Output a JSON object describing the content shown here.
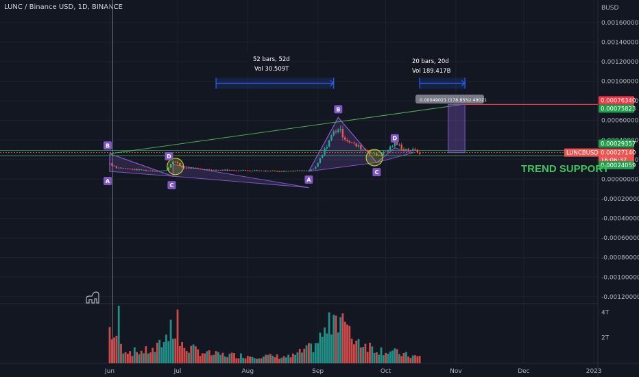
{
  "header": {
    "symbol_title": "LUNC / Binance USD, 1D, BINANCE",
    "currency": "BUSD"
  },
  "annotations": {
    "range1_bars": "52 bars, 52d",
    "range1_vol": "Vol 30.509T",
    "range2_bars": "20 bars, 20d",
    "range2_vol": "Vol 189.417B",
    "price_range_note": "0.00049021 (178.85%) 49021",
    "trend_support": "TREND SUPPORT",
    "pattern1_points": [
      "A",
      "B",
      "C",
      "D"
    ],
    "pattern2_points": [
      "A",
      "B",
      "C",
      "D"
    ]
  },
  "price_tags": {
    "target_upper": "0.00076340",
    "target_lower": "0.00075823",
    "level_upper": "0.00029357",
    "symbol": "LUNCBUSD",
    "last_price": "0.00027140",
    "countdown": "16:06:37",
    "level_lower": "0.00024059"
  },
  "colors": {
    "background": "#131722",
    "up": "#26a69a",
    "down": "#ef5350",
    "pattern": "#7e57c2",
    "trendline": "#4caf50",
    "range_box": "#2962ff",
    "target_line": "#f23645"
  },
  "icons": [
    "tradingview-logo-icon"
  ],
  "chart_data": {
    "type": "candlestick",
    "title": "LUNC / Binance USD, 1D, BINANCE",
    "ylabel": "BUSD",
    "price_axis_ticks": [
      "0.00160000",
      "0.00140000",
      "0.00120000",
      "0.00100000",
      "0.00080000",
      "0.00060000",
      "0.00040000",
      "0.00020000",
      "0.00000000",
      "-0.00020000",
      "-0.00040000",
      "-0.00060000",
      "-0.00080000",
      "-0.00100000",
      "-0.00120000"
    ],
    "price_axis_values": [
      0.0016,
      0.0014,
      0.0012,
      0.001,
      0.0008,
      0.0006,
      0.0004,
      0.0002,
      0.0,
      -0.0002,
      -0.0004,
      -0.0006,
      -0.0008,
      -0.001,
      -0.0012
    ],
    "ylim": [
      -0.00125,
      0.00183
    ],
    "volume_axis_ticks": [
      "4T",
      "2T"
    ],
    "volume_axis_values": [
      4,
      2
    ],
    "volume_ylim": [
      0,
      4.5
    ],
    "volume_unit": "T",
    "x_axis_ticks": [
      "Jun",
      "Jul",
      "Aug",
      "Sep",
      "Oct",
      "Nov",
      "Dec",
      "2023"
    ],
    "x_axis_tick_days": [
      0,
      30,
      61,
      92,
      122,
      153,
      183,
      214
    ],
    "day_start": 0,
    "day_end": 223,
    "series": [
      {
        "type": "candles",
        "start_day": 0,
        "values": "generated-path"
      }
    ],
    "price_path": [
      [
        0,
        0.00016
      ],
      [
        3,
        0.00012
      ],
      [
        10,
        0.0001
      ],
      [
        20,
        8.5e-05
      ],
      [
        25,
        9e-05
      ],
      [
        28,
        0.00019
      ],
      [
        32,
        0.00012
      ],
      [
        45,
        9.5e-05
      ],
      [
        60,
        9e-05
      ],
      [
        75,
        8.5e-05
      ],
      [
        88,
        8.5e-05
      ],
      [
        91,
        0.00012
      ],
      [
        94,
        0.00025
      ],
      [
        97,
        0.0004
      ],
      [
        99,
        0.00048
      ],
      [
        101,
        0.00052
      ],
      [
        104,
        0.00042
      ],
      [
        108,
        0.00035
      ],
      [
        113,
        0.0003
      ],
      [
        118,
        0.00024
      ],
      [
        122,
        0.00028
      ],
      [
        126,
        0.00037
      ],
      [
        130,
        0.00031
      ],
      [
        135,
        0.00029
      ],
      [
        137,
        0.000271
      ]
    ],
    "volume_path": [
      [
        0,
        2.7
      ],
      [
        4,
        1.3
      ],
      [
        10,
        0.9
      ],
      [
        20,
        1.0
      ],
      [
        27,
        2.4
      ],
      [
        30,
        1.4
      ],
      [
        45,
        0.7
      ],
      [
        60,
        0.6
      ],
      [
        80,
        0.5
      ],
      [
        90,
        1.3
      ],
      [
        96,
        2.6
      ],
      [
        101,
        3.9
      ],
      [
        106,
        2.2
      ],
      [
        112,
        1.6
      ],
      [
        118,
        1.1
      ],
      [
        125,
        0.9
      ],
      [
        132,
        0.6
      ],
      [
        137,
        0.5
      ]
    ],
    "volume_spikes": [
      [
        4,
        4.5
      ],
      [
        27,
        3.4
      ],
      [
        30,
        4.2
      ],
      [
        99,
        3.8
      ],
      [
        103,
        3.9
      ]
    ],
    "pattern1": {
      "A": [
        0,
        8e-05
      ],
      "B": [
        0,
        0.00026
      ],
      "C": [
        28,
        3e-05
      ],
      "D": [
        28,
        0.00015
      ],
      "extra": [
        88,
        -8.5e-05
      ]
    },
    "pattern2": {
      "A": [
        88,
        8e-05
      ],
      "B": [
        101,
        0.00063
      ],
      "C": [
        118,
        0.00017
      ],
      "D": [
        126,
        0.00032
      ],
      "extra": [
        134,
        0.00027
      ]
    },
    "trendline": [
      [
        0,
        0.00026
      ],
      [
        155,
        0.00076
      ]
    ],
    "horizontal_levels": [
      0.00029357,
      0.00024059,
      0.0002714
    ],
    "target_line": {
      "from_day": 152,
      "to_day": 223,
      "price": 0.0007634
    },
    "target_box": {
      "from_day": 152,
      "to_day": 157,
      "low": 0.0002714,
      "high": 0.0007634
    },
    "range_box_1": {
      "from_day": 47,
      "to_day": 99,
      "price": 0.00098
    },
    "range_box_2": {
      "from_day": 137,
      "to_day": 157,
      "price": 0.00098
    },
    "circles": [
      [
        29,
        0.00013
      ],
      [
        117,
        0.00022
      ]
    ],
    "crosshair_day": 1
  }
}
